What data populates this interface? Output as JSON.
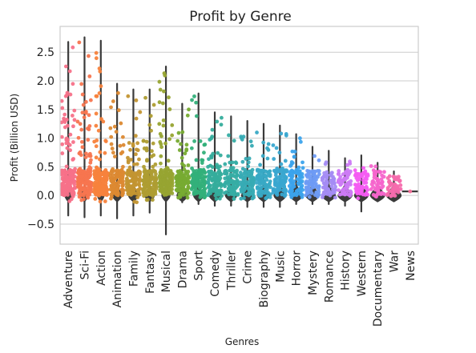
{
  "chart_data": {
    "type": "violin-strip",
    "title": "Profit by Genre",
    "xlabel": "Genres",
    "ylabel": "Profit (Billion USD)",
    "ylim": [
      -0.85,
      2.95
    ],
    "yticks": [
      -0.5,
      0.0,
      0.5,
      1.0,
      1.5,
      2.0,
      2.5
    ],
    "ytick_labels": [
      "−0.5",
      "0.0",
      "0.5",
      "1.0",
      "1.5",
      "2.0",
      "2.5"
    ],
    "grid": true,
    "categories": [
      "Adventure",
      "Sci-Fi",
      "Action",
      "Animation",
      "Family",
      "Fantasy",
      "Musical",
      "Drama",
      "Sport",
      "Comedy",
      "Thriller",
      "Crime",
      "Biography",
      "Music",
      "Horror",
      "Mystery",
      "Romance",
      "History",
      "Western",
      "Documentary",
      "War",
      "News"
    ],
    "colors": [
      "#f77189",
      "#f7754f",
      "#f7823c",
      "#dc8932",
      "#c39532",
      "#ae9d31",
      "#97a431",
      "#77ab31",
      "#33b07a",
      "#35ad9c",
      "#36ada4",
      "#37abb4",
      "#38a9c5",
      "#39a7d0",
      "#3ba3ec",
      "#6e9bf4",
      "#a48cf4",
      "#cc7af4",
      "#f45cf2",
      "#f565cc",
      "#f66bad",
      "#f7719b"
    ],
    "ranges": [
      {
        "min": -0.35,
        "max": 2.68
      },
      {
        "min": -0.38,
        "max": 2.76
      },
      {
        "min": -0.35,
        "max": 2.7
      },
      {
        "min": -0.4,
        "max": 1.95
      },
      {
        "min": -0.35,
        "max": 1.85
      },
      {
        "min": -0.3,
        "max": 1.85
      },
      {
        "min": -0.68,
        "max": 2.25
      },
      {
        "min": -0.12,
        "max": 1.6
      },
      {
        "min": -0.15,
        "max": 1.78
      },
      {
        "min": -0.18,
        "max": 1.45
      },
      {
        "min": -0.18,
        "max": 1.38
      },
      {
        "min": -0.2,
        "max": 1.3
      },
      {
        "min": -0.2,
        "max": 1.25
      },
      {
        "min": -0.2,
        "max": 1.22
      },
      {
        "min": -0.15,
        "max": 1.07
      },
      {
        "min": -0.15,
        "max": 0.85
      },
      {
        "min": -0.15,
        "max": 0.78
      },
      {
        "min": -0.18,
        "max": 0.65
      },
      {
        "min": -0.28,
        "max": 0.7
      },
      {
        "min": -0.08,
        "max": 0.57
      },
      {
        "min": -0.08,
        "max": 0.42
      },
      {
        "min": 0.06,
        "max": 0.08
      }
    ]
  }
}
